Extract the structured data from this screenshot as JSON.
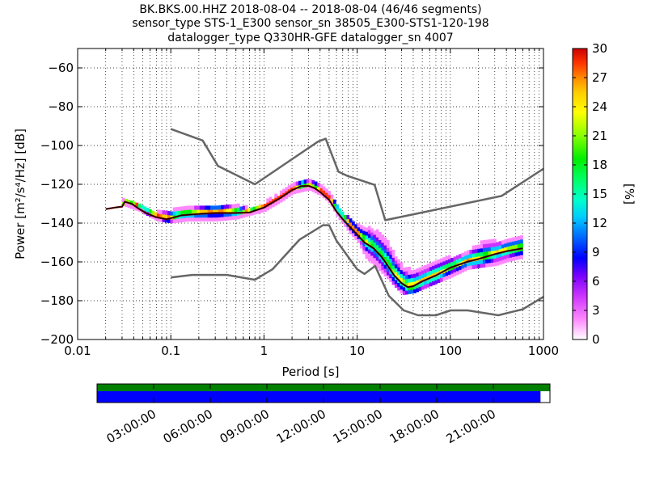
{
  "colors": {
    "noise_model": "#666666",
    "median": "#000000",
    "mode": "#8b0000",
    "grid": "#000000",
    "coverage_data": "#007f00",
    "coverage_psd": "#0000ff",
    "colormap": [
      "#ffffff",
      "#ff88ff",
      "#cc33ff",
      "#7700ff",
      "#0000ff",
      "#0066ff",
      "#00ccff",
      "#00ffcc",
      "#00ff66",
      "#00ee00",
      "#88ff00",
      "#ffff00",
      "#ffcc00",
      "#ff8800",
      "#ff3300",
      "#cc0000"
    ]
  },
  "chart_data": {
    "type": "heatmap",
    "title": [
      "BK.BKS.00.HHZ   2018-08-04 -- 2018-08-04  (46/46 segments)",
      "sensor_type STS-1_E300 sensor_sn 38505_E300-STS1-120-198",
      "datalogger_type Q330HR-GFE datalogger_sn 4007"
    ],
    "xlabel": "Period [s]",
    "ylabel": "Power [m²/s⁴/Hz] [dB]",
    "x_scale": "log",
    "xlim": [
      0.01,
      1000
    ],
    "ylim": [
      -200,
      -50
    ],
    "x_ticks": [
      0.01,
      0.1,
      1,
      10,
      100,
      1000
    ],
    "x_tick_labels": [
      "0.01",
      "0.1",
      "1",
      "10",
      "100",
      "1000"
    ],
    "y_ticks": [
      -200,
      -180,
      -160,
      -140,
      -120,
      -100,
      -80,
      -60
    ],
    "y_tick_labels": [
      "−200",
      "−180",
      "−160",
      "−140",
      "−120",
      "−100",
      "−80",
      "−60"
    ],
    "grid": "dotted",
    "colorbar": {
      "label": "[%]",
      "range": [
        0,
        30
      ],
      "ticks": [
        0,
        3,
        6,
        9,
        12,
        15,
        18,
        21,
        24,
        27,
        30
      ],
      "tick_labels": [
        "0",
        "3",
        "6",
        "9",
        "12",
        "15",
        "18",
        "21",
        "24",
        "27",
        "30"
      ],
      "position": "right"
    },
    "noise_model_high": [
      [
        0.1,
        -91.5
      ],
      [
        0.22,
        -97.4
      ],
      [
        0.32,
        -110.5
      ],
      [
        0.8,
        -120
      ],
      [
        3.8,
        -98
      ],
      [
        4.6,
        -96.5
      ],
      [
        6.3,
        -113.5
      ],
      [
        7.9,
        -115.7
      ],
      [
        15.4,
        -120.3
      ],
      [
        20,
        -138.5
      ],
      [
        354.8,
        -126
      ],
      [
        1000,
        -112
      ]
    ],
    "noise_model_low": [
      [
        0.1,
        -168
      ],
      [
        0.17,
        -166.7
      ],
      [
        0.4,
        -166.7
      ],
      [
        0.8,
        -169.2
      ],
      [
        1.24,
        -163.7
      ],
      [
        2.4,
        -148.6
      ],
      [
        4.3,
        -141.1
      ],
      [
        5,
        -141.1
      ],
      [
        6,
        -149
      ],
      [
        10,
        -163.8
      ],
      [
        12,
        -166.2
      ],
      [
        15.6,
        -162.1
      ],
      [
        21.9,
        -177.5
      ],
      [
        31.6,
        -185
      ],
      [
        45,
        -187.5
      ],
      [
        70,
        -187.5
      ],
      [
        101,
        -185
      ],
      [
        154,
        -185
      ],
      [
        328,
        -187.5
      ],
      [
        600,
        -184.4
      ],
      [
        1000,
        -178
      ]
    ],
    "median": [
      [
        0.02,
        -132.8
      ],
      [
        0.025,
        -132
      ],
      [
        0.03,
        -131.5
      ],
      [
        0.032,
        -129
      ],
      [
        0.038,
        -130
      ],
      [
        0.045,
        -132.5
      ],
      [
        0.055,
        -135
      ],
      [
        0.07,
        -137
      ],
      [
        0.09,
        -138
      ],
      [
        0.1,
        -137.5
      ],
      [
        0.13,
        -136
      ],
      [
        0.2,
        -135.3
      ],
      [
        0.3,
        -134.8
      ],
      [
        0.5,
        -134.8
      ],
      [
        0.7,
        -134.5
      ],
      [
        1,
        -132
      ],
      [
        1.5,
        -127
      ],
      [
        2,
        -123
      ],
      [
        2.5,
        -121
      ],
      [
        3,
        -120.8
      ],
      [
        3.5,
        -122
      ],
      [
        4,
        -124
      ],
      [
        5,
        -128
      ],
      [
        6,
        -134
      ],
      [
        7,
        -138
      ],
      [
        8,
        -141
      ],
      [
        10,
        -146
      ],
      [
        12,
        -150
      ],
      [
        15,
        -153
      ],
      [
        18,
        -157
      ],
      [
        20,
        -160
      ],
      [
        25,
        -167
      ],
      [
        30,
        -171
      ],
      [
        35,
        -173
      ],
      [
        40,
        -172.5
      ],
      [
        50,
        -170
      ],
      [
        70,
        -167
      ],
      [
        100,
        -163
      ],
      [
        150,
        -160
      ],
      [
        200,
        -158.5
      ],
      [
        300,
        -156
      ],
      [
        400,
        -154.5
      ],
      [
        600,
        -153
      ]
    ],
    "psd_spread": [
      [
        0.03,
        -131,
        -129
      ],
      [
        0.045,
        -134,
        -131
      ],
      [
        0.07,
        -139,
        -135
      ],
      [
        0.1,
        -140,
        -134
      ],
      [
        0.15,
        -139,
        -133
      ],
      [
        0.2,
        -139,
        -132
      ],
      [
        0.3,
        -139,
        -132
      ],
      [
        0.5,
        -138,
        -131.5
      ],
      [
        0.7,
        -136,
        -133
      ],
      [
        1,
        -134,
        -130
      ],
      [
        1.5,
        -129,
        -125
      ],
      [
        2,
        -125,
        -121
      ],
      [
        3,
        -123,
        -119
      ],
      [
        4,
        -126,
        -122
      ],
      [
        5,
        -130,
        -126
      ],
      [
        6,
        -137,
        -132
      ],
      [
        7,
        -141,
        -136
      ],
      [
        8,
        -145,
        -138
      ],
      [
        10,
        -150,
        -142
      ],
      [
        12,
        -158,
        -143
      ],
      [
        15,
        -162,
        -144
      ],
      [
        20,
        -168,
        -149
      ],
      [
        25,
        -173,
        -158
      ],
      [
        30,
        -177,
        -163
      ],
      [
        40,
        -176,
        -165
      ],
      [
        50,
        -174,
        -164
      ],
      [
        70,
        -171,
        -160
      ],
      [
        100,
        -168,
        -158
      ],
      [
        150,
        -164,
        -155
      ],
      [
        200,
        -163,
        -151
      ],
      [
        300,
        -162,
        -150
      ],
      [
        400,
        -160,
        -149
      ],
      [
        600,
        -158,
        -146
      ]
    ],
    "time_axis": {
      "tick_labels": [
        "03:00:00",
        "06:00:00",
        "09:00:00",
        "12:00:00",
        "15:00:00",
        "18:00:00",
        "21:00:00"
      ],
      "tick_hours": [
        3,
        6,
        9,
        12,
        15,
        18,
        21
      ],
      "range_hours": [
        0,
        24
      ],
      "data_coverage_hours": [
        0,
        24
      ],
      "psd_coverage_hours": [
        0,
        23.5
      ]
    }
  }
}
